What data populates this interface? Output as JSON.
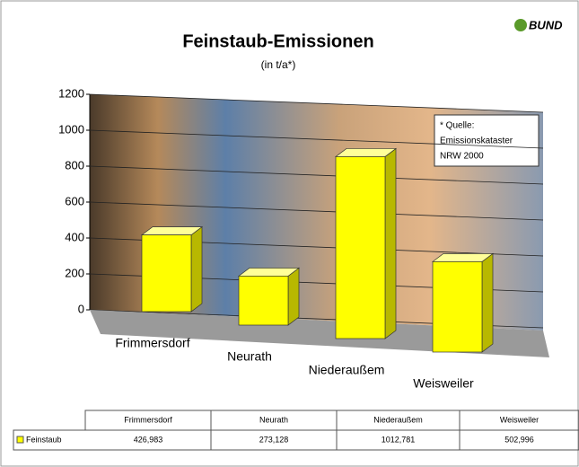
{
  "chart_data": {
    "type": "bar3d",
    "title": "Feinstaub-Emissionen",
    "subtitle": "(in t/a*)",
    "annotation": [
      "* Quelle:",
      "Emissionskataster",
      "NRW 2000"
    ],
    "logo": "BUND",
    "categories": [
      "Frimmersdorf",
      "Neurath",
      "Niederaußem",
      "Weisweiler"
    ],
    "series": [
      {
        "name": "Feinstaub",
        "color": "#ffff00",
        "values": [
          426.983,
          273.128,
          1012.781,
          502.996
        ],
        "value_labels": [
          "426,983",
          "273,128",
          "1012,781",
          "502,996"
        ]
      }
    ],
    "ylim": [
      0,
      1200
    ],
    "yticks": [
      0,
      200,
      400,
      600,
      800,
      1000,
      1200
    ],
    "grid": true
  }
}
